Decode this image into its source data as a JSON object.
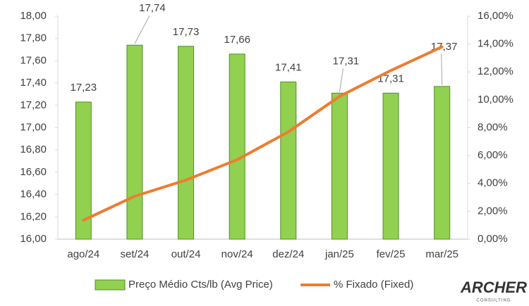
{
  "chart_data": {
    "type": "combo",
    "categories": [
      "ago/24",
      "set/24",
      "out/24",
      "nov/24",
      "dez/24",
      "jan/25",
      "fev/25",
      "mar/25"
    ],
    "series": [
      {
        "name": "Preço Médio Cts/lb (Avg Price)",
        "type": "bar",
        "color": "#92d050",
        "edge": "#4e8f2a",
        "values": [
          17.23,
          17.74,
          17.73,
          17.66,
          17.41,
          17.31,
          17.31,
          17.37
        ],
        "value_labels": [
          "17,23",
          "17,74",
          "17,73",
          "17,66",
          "17,41",
          "17,31",
          "17,31",
          "17,37"
        ]
      },
      {
        "name": "% Fixado (Fixed)",
        "type": "line",
        "axis": "y2",
        "color": "#ed7d31",
        "values": [
          1.36,
          3.08,
          4.24,
          5.7,
          7.7,
          10.25,
          12.1,
          13.8
        ]
      }
    ],
    "ylim": [
      16,
      18
    ],
    "yticks": [
      {
        "value": 16,
        "label": "16,00"
      },
      {
        "value": 16.2,
        "label": "16,20"
      },
      {
        "value": 16.4,
        "label": "16,40"
      },
      {
        "value": 16.6,
        "label": "16,60"
      },
      {
        "value": 16.8,
        "label": "16,80"
      },
      {
        "value": 17,
        "label": "17,00"
      },
      {
        "value": 17.2,
        "label": "17,20"
      },
      {
        "value": 17.4,
        "label": "17,40"
      },
      {
        "value": 17.6,
        "label": "17,60"
      },
      {
        "value": 17.8,
        "label": "17,80"
      },
      {
        "value": 18,
        "label": "18,00"
      }
    ],
    "y2lim": [
      0,
      16
    ],
    "y2ticks": [
      {
        "value": 0,
        "label": "0,00%"
      },
      {
        "value": 2,
        "label": "2,00%"
      },
      {
        "value": 4,
        "label": "4,00%"
      },
      {
        "value": 6,
        "label": "6,00%"
      },
      {
        "value": 8,
        "label": "8,00%"
      },
      {
        "value": 10,
        "label": "10,00%"
      },
      {
        "value": 12,
        "label": "12,00%"
      },
      {
        "value": 14,
        "label": "14,00%"
      },
      {
        "value": 16,
        "label": "16,00%"
      }
    ],
    "grid": false,
    "legend": "bottom",
    "logo": {
      "name": "ARCHER",
      "tagline": "CONSULTING"
    }
  }
}
